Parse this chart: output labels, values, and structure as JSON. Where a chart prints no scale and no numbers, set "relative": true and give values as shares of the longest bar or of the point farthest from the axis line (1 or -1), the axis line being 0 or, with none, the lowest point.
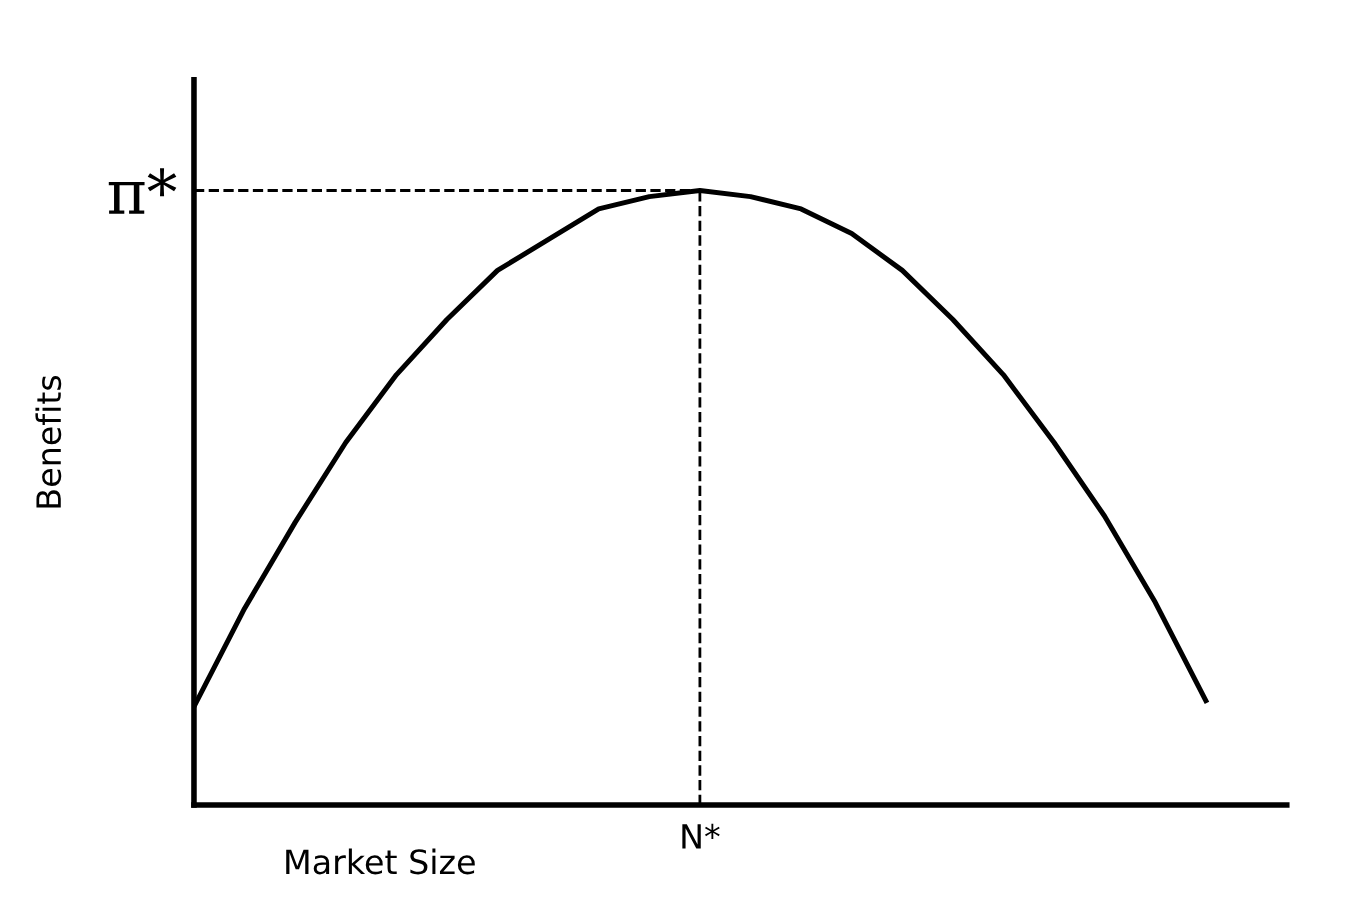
{
  "chart_data": {
    "type": "line",
    "relative": true,
    "xlabel": "Market Size",
    "ylabel": "Benefits",
    "categories": [
      null,
      null,
      null,
      null,
      null,
      null,
      null,
      null,
      null,
      null,
      null,
      null,
      null,
      null,
      null,
      null,
      null,
      null,
      null,
      null,
      null
    ],
    "series": [
      {
        "color": "#000000",
        "values": [
          0.16,
          0.32,
          0.46,
          0.59,
          0.7,
          0.79,
          0.87,
          0.92,
          0.97,
          0.99,
          1,
          0.99,
          0.97,
          0.93,
          0.87,
          0.79,
          0.7,
          0.59,
          0.47,
          0.33,
          0.17
        ]
      }
    ],
    "ref_lines": [
      {
        "axis": "y",
        "value": 1,
        "label": "π*",
        "line_style": "dashed",
        "color": "#000000"
      }
    ],
    "annotations": [
      "N*"
    ],
    "grid": false,
    "legend": false,
    "marker": "none",
    "line_style": "solid"
  }
}
